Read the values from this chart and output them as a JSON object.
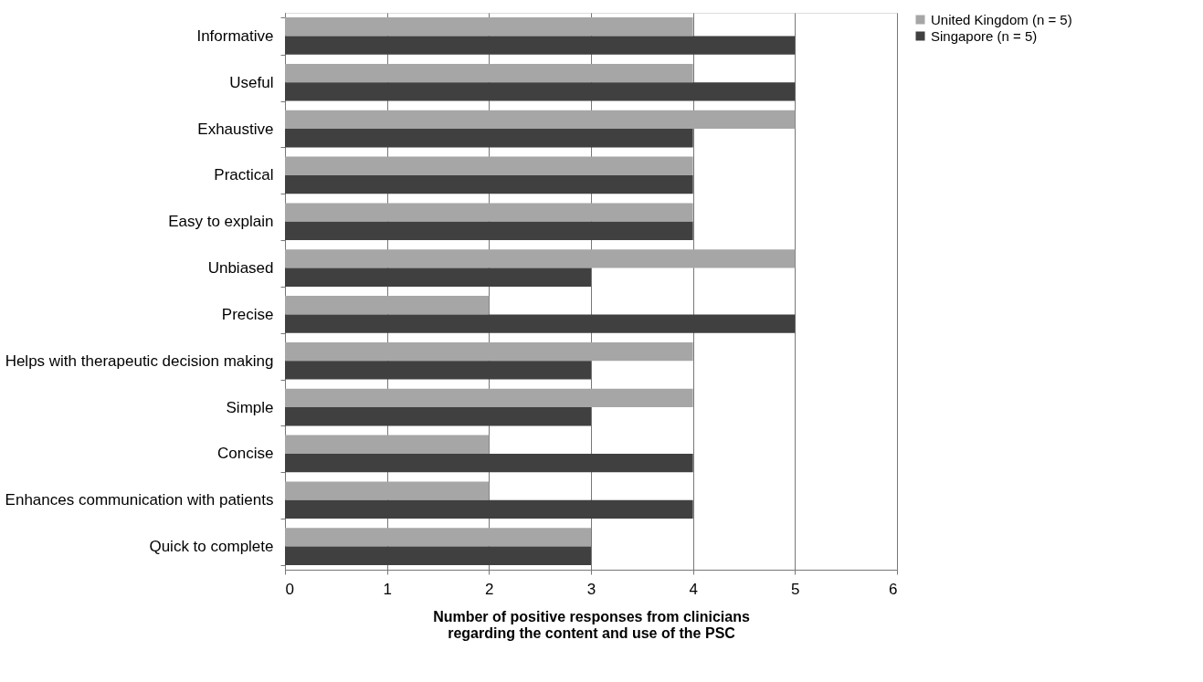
{
  "chart_data": {
    "type": "bar",
    "orientation": "horizontal",
    "xlabel": "Number of positive responses from clinicians regarding the content and use of the PSC",
    "categories": [
      "Informative",
      "Useful",
      "Exhaustive",
      "Practical",
      "Easy to explain",
      "Unbiased",
      "Precise",
      "Helps with therapeutic decision making",
      "Simple",
      "Concise",
      "Enhances communication with patients",
      "Quick to complete"
    ],
    "series": [
      {
        "name": "United Kingdom (n = 5)",
        "color": "#a6a6a6",
        "values": [
          4,
          4,
          5,
          4,
          4,
          5,
          2,
          4,
          4,
          2,
          2,
          3
        ]
      },
      {
        "name": "Singapore (n = 5)",
        "color": "#404040",
        "values": [
          5,
          5,
          4,
          4,
          4,
          3,
          5,
          3,
          3,
          4,
          4,
          3
        ]
      }
    ],
    "xlim": [
      0,
      6
    ],
    "xticks": [
      0,
      1,
      2,
      3,
      4,
      5,
      6
    ],
    "grid": "x",
    "legend": "right"
  }
}
